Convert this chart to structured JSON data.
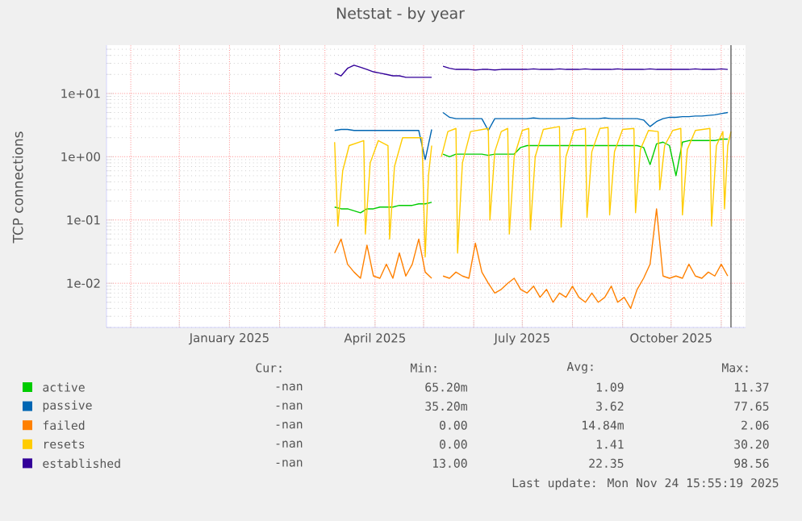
{
  "chart_data": {
    "type": "line",
    "title": "Netstat - by year",
    "ylabel": "TCP connections",
    "log": "y",
    "grid": true,
    "legend": "bottom",
    "xlim": [
      "2024-10-17",
      "2025-11-16"
    ],
    "ylim": [
      0.002,
      58
    ],
    "xticks": [
      {
        "value": "2024-11-01",
        "label": null
      },
      {
        "value": "2024-12-01",
        "label": null
      },
      {
        "value": "2025-01-01",
        "label": "January 2025"
      },
      {
        "value": "2025-02-01",
        "label": null
      },
      {
        "value": "2025-03-01",
        "label": null
      },
      {
        "value": "2025-04-01",
        "label": "April 2025"
      },
      {
        "value": "2025-05-01",
        "label": null
      },
      {
        "value": "2025-06-01",
        "label": null
      },
      {
        "value": "2025-07-01",
        "label": "July 2025"
      },
      {
        "value": "2025-08-01",
        "label": null
      },
      {
        "value": "2025-09-01",
        "label": null
      },
      {
        "value": "2025-10-01",
        "label": "October 2025"
      },
      {
        "value": "2025-11-01",
        "label": null
      }
    ],
    "yticks": [
      {
        "value": 0.01,
        "label": "1e-02"
      },
      {
        "value": 0.1,
        "label": "1e-01"
      },
      {
        "value": 1,
        "label": "1e+00"
      },
      {
        "value": 10,
        "label": "1e+01"
      }
    ],
    "x": [
      "2025-03-07",
      "2025-03-11",
      "2025-03-15",
      "2025-03-19",
      "2025-03-23",
      "2025-03-27",
      "2025-03-31",
      "2025-04-04",
      "2025-04-08",
      "2025-04-12",
      "2025-04-16",
      "2025-04-20",
      "2025-04-24",
      "2025-04-28",
      "2025-05-02",
      "2025-05-06",
      "2025-05-10",
      "2025-05-13",
      "2025-05-17",
      "2025-05-21",
      "2025-05-25",
      "2025-05-29",
      "2025-06-02",
      "2025-06-06",
      "2025-06-10",
      "2025-06-14",
      "2025-06-18",
      "2025-06-22",
      "2025-06-26",
      "2025-06-30",
      "2025-07-04",
      "2025-07-08",
      "2025-07-12",
      "2025-07-16",
      "2025-07-20",
      "2025-07-24",
      "2025-07-28",
      "2025-08-01",
      "2025-08-05",
      "2025-08-09",
      "2025-08-13",
      "2025-08-17",
      "2025-08-21",
      "2025-08-25",
      "2025-08-29",
      "2025-09-02",
      "2025-09-06",
      "2025-09-10",
      "2025-09-14",
      "2025-09-18",
      "2025-09-22",
      "2025-09-26",
      "2025-09-30",
      "2025-10-04",
      "2025-10-08",
      "2025-10-12",
      "2025-10-16",
      "2025-10-20",
      "2025-10-24",
      "2025-10-28",
      "2025-11-01",
      "2025-11-05"
    ],
    "series": [
      {
        "name": "active",
        "color": "#00cc00",
        "values": [
          0.16,
          0.15,
          0.15,
          0.14,
          0.13,
          0.15,
          0.15,
          0.16,
          0.16,
          0.16,
          0.17,
          0.17,
          0.17,
          0.18,
          0.18,
          0.19,
          null,
          1.1,
          1.0,
          1.1,
          1.1,
          1.1,
          1.1,
          1.1,
          1.05,
          1.1,
          1.1,
          1.1,
          1.1,
          1.4,
          1.5,
          1.5,
          1.5,
          1.5,
          1.5,
          1.5,
          1.5,
          1.5,
          1.5,
          1.5,
          1.5,
          1.5,
          1.5,
          1.5,
          1.5,
          1.5,
          1.5,
          1.5,
          1.4,
          0.75,
          1.6,
          1.7,
          1.5,
          0.5,
          1.7,
          1.8,
          1.8,
          1.8,
          1.8,
          1.8,
          1.9,
          1.9
        ]
      },
      {
        "name": "passive",
        "color": "#0066b3",
        "values": [
          2.6,
          2.7,
          2.7,
          2.6,
          2.6,
          2.6,
          2.6,
          2.6,
          2.6,
          2.6,
          2.6,
          2.6,
          2.6,
          2.6,
          0.9,
          2.7,
          null,
          5.0,
          4.2,
          4.0,
          4.0,
          4.0,
          4.0,
          4.0,
          2.6,
          4.0,
          4.0,
          4.0,
          4.0,
          4.0,
          4.0,
          4.1,
          4.0,
          4.0,
          4.0,
          4.0,
          4.0,
          4.1,
          4.0,
          4.0,
          4.0,
          4.0,
          4.1,
          4.0,
          4.0,
          4.0,
          4.0,
          4.0,
          3.8,
          3.0,
          3.6,
          4.0,
          4.2,
          4.2,
          4.3,
          4.3,
          4.4,
          4.4,
          4.5,
          4.6,
          4.8,
          5.0
        ]
      },
      {
        "name": "failed",
        "color": "#ff8000",
        "values": [
          0.03,
          0.05,
          0.02,
          0.015,
          0.012,
          0.04,
          0.013,
          0.012,
          0.02,
          0.012,
          0.03,
          0.013,
          0.02,
          0.05,
          0.015,
          0.012,
          null,
          0.013,
          0.012,
          0.015,
          0.013,
          0.012,
          0.043,
          0.015,
          0.01,
          0.007,
          0.008,
          0.01,
          0.012,
          0.008,
          0.007,
          0.009,
          0.006,
          0.008,
          0.005,
          0.007,
          0.006,
          0.009,
          0.006,
          0.005,
          0.007,
          0.005,
          0.006,
          0.009,
          0.005,
          0.006,
          0.004,
          0.008,
          0.012,
          0.02,
          0.15,
          0.013,
          0.012,
          0.013,
          0.012,
          0.02,
          0.013,
          0.012,
          0.015,
          0.013,
          0.02,
          0.013
        ]
      },
      {
        "name": "resets",
        "color": "#ffcc00",
        "x": [
          "2025-03-07",
          "2025-03-09",
          "2025-03-12",
          "2025-03-16",
          "2025-03-25",
          "2025-03-26",
          "2025-03-29",
          "2025-04-03",
          "2025-04-09",
          "2025-04-10",
          "2025-04-13",
          "2025-04-18",
          "2025-04-30",
          "2025-05-02",
          "2025-05-04",
          "2025-05-06",
          "2025-05-09",
          "2025-05-12",
          "2025-05-16",
          "2025-05-21",
          "2025-05-22",
          "2025-05-25",
          "2025-05-30",
          "2025-06-10",
          "2025-06-11",
          "2025-06-14",
          "2025-06-18",
          "2025-06-22",
          "2025-06-23",
          "2025-06-26",
          "2025-07-01",
          "2025-07-05",
          "2025-07-06",
          "2025-07-09",
          "2025-07-14",
          "2025-07-24",
          "2025-07-25",
          "2025-07-28",
          "2025-08-02",
          "2025-08-09",
          "2025-08-10",
          "2025-08-13",
          "2025-08-18",
          "2025-08-23",
          "2025-08-24",
          "2025-08-27",
          "2025-09-01",
          "2025-09-08",
          "2025-09-09",
          "2025-09-12",
          "2025-09-17",
          "2025-09-23",
          "2025-09-24",
          "2025-09-27",
          "2025-10-02",
          "2025-10-07",
          "2025-10-08",
          "2025-10-11",
          "2025-10-16",
          "2025-10-25",
          "2025-10-26",
          "2025-10-29",
          "2025-11-02",
          "2025-11-03",
          "2025-11-05",
          "2025-11-07"
        ],
        "values": [
          1.7,
          0.08,
          0.6,
          1.5,
          1.8,
          0.06,
          0.8,
          1.8,
          1.5,
          0.05,
          0.7,
          2.0,
          2.0,
          0.026,
          0.5,
          1.5,
          null,
          1.0,
          2.5,
          2.8,
          0.03,
          0.8,
          2.5,
          2.8,
          0.1,
          1.2,
          2.5,
          2.8,
          0.06,
          1.0,
          2.6,
          2.8,
          0.07,
          1.0,
          2.7,
          3.0,
          0.077,
          1.0,
          2.6,
          2.8,
          0.11,
          1.2,
          2.8,
          2.9,
          0.12,
          1.2,
          2.7,
          2.8,
          0.13,
          1.3,
          2.6,
          2.5,
          0.3,
          1.5,
          2.6,
          2.8,
          0.12,
          1.3,
          2.6,
          2.8,
          0.08,
          1.5,
          2.5,
          0.15,
          1.5,
          2.5
        ]
      },
      {
        "name": "established",
        "color": "#330099",
        "values": [
          21,
          19,
          25,
          28,
          26,
          24,
          22,
          21,
          20,
          19,
          19,
          18,
          18,
          18,
          18,
          18,
          null,
          27,
          25,
          24,
          24,
          24,
          23.5,
          24,
          24,
          23.5,
          24,
          24,
          24,
          24,
          24,
          24.5,
          24,
          24,
          24,
          24.5,
          24,
          24,
          24,
          24.5,
          24,
          24,
          24,
          24,
          24.5,
          24,
          24,
          24,
          24,
          24.5,
          24,
          24,
          24,
          24,
          24,
          24,
          24.5,
          24,
          24,
          24,
          24.5,
          24
        ]
      }
    ],
    "ref_lines": [
      {
        "axis": "x",
        "value": "2025-11-07",
        "color": "#444444"
      }
    ],
    "annotations": [
      "Cur:",
      "Min:",
      "Avg:",
      "Max:",
      "-nan",
      "65.20m",
      "1.09",
      "11.37",
      "-nan",
      "35.20m",
      "3.62",
      "77.65",
      "-nan",
      "0.00",
      "14.84m",
      "2.06",
      "-nan",
      "0.00",
      "1.41",
      "30.20",
      "-nan",
      "13.00",
      "22.35",
      "98.56",
      "Last update: Mon Nov 24 15:55:19 2025"
    ]
  }
}
